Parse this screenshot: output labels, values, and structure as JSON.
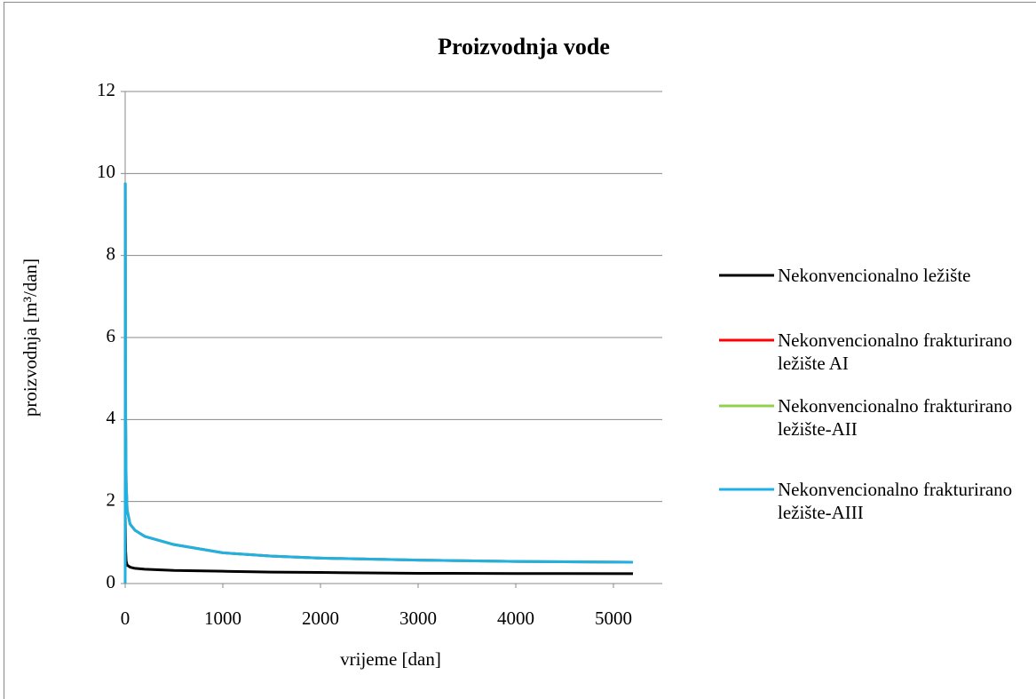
{
  "chart_data": {
    "type": "line",
    "title": "Proizvodnja vode",
    "xlabel": "vrijeme [dan]",
    "ylabel": "proizvodnja [m³/dan]",
    "x": [
      0,
      1,
      5,
      10,
      20,
      50,
      100,
      200,
      500,
      1000,
      1500,
      2000,
      3000,
      4000,
      5200
    ],
    "series": [
      {
        "name": "Nekonvencionalno ležište",
        "color": "#000000",
        "values": [
          0,
          1.6,
          0.8,
          0.55,
          0.45,
          0.4,
          0.37,
          0.35,
          0.32,
          0.3,
          0.28,
          0.27,
          0.25,
          0.245,
          0.24
        ]
      },
      {
        "name": "Nekonvencionalno frakturirano ležište AI",
        "color": "#ff0000",
        "values": [
          0,
          9.75,
          4.0,
          2.5,
          1.8,
          1.45,
          1.3,
          1.15,
          0.95,
          0.75,
          0.67,
          0.62,
          0.57,
          0.54,
          0.52
        ]
      },
      {
        "name": "Nekonvencionalno frakturirano ležište-AII",
        "color": "#92d050",
        "values": [
          0,
          9.75,
          4.0,
          2.5,
          1.8,
          1.45,
          1.3,
          1.15,
          0.95,
          0.75,
          0.67,
          0.62,
          0.57,
          0.54,
          0.52
        ]
      },
      {
        "name": "Nekonvencionalno frakturirano ležište-AIII",
        "color": "#1fb1e3",
        "values": [
          0,
          9.75,
          4.0,
          2.5,
          1.8,
          1.45,
          1.3,
          1.15,
          0.95,
          0.75,
          0.67,
          0.62,
          0.57,
          0.54,
          0.52
        ]
      }
    ],
    "xlim": [
      0,
      5500
    ],
    "xticks": [
      0,
      1000,
      2000,
      3000,
      4000,
      5000
    ],
    "ylim": [
      0,
      12
    ],
    "yticks": [
      0,
      2,
      4,
      6,
      8,
      10,
      12
    ],
    "grid": true,
    "legend": "right"
  }
}
